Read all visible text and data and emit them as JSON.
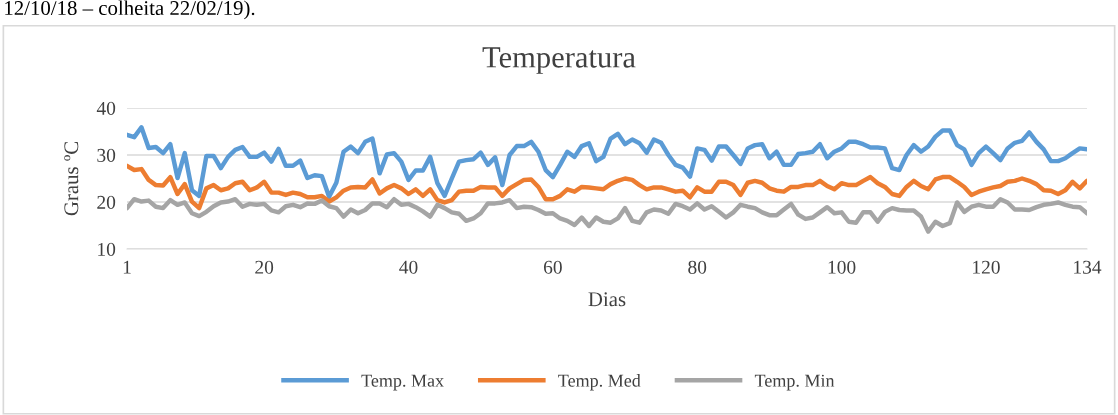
{
  "chart_data": {
    "type": "line",
    "title": "Temperatura",
    "xlabel": "Dias",
    "ylabel": "Graus ºC",
    "annotations": [
      "12/10/18 – colheita 22/02/19)."
    ],
    "x": [
      1,
      2,
      3,
      4,
      5,
      6,
      7,
      8,
      9,
      10,
      11,
      12,
      13,
      14,
      15,
      16,
      17,
      18,
      19,
      20,
      21,
      22,
      23,
      24,
      25,
      26,
      27,
      28,
      29,
      30,
      31,
      32,
      33,
      34,
      35,
      36,
      37,
      38,
      39,
      40,
      41,
      42,
      43,
      44,
      45,
      46,
      47,
      48,
      49,
      50,
      51,
      52,
      53,
      54,
      55,
      56,
      57,
      58,
      59,
      60,
      61,
      62,
      63,
      64,
      65,
      66,
      67,
      68,
      69,
      70,
      71,
      72,
      73,
      74,
      75,
      76,
      77,
      78,
      79,
      80,
      81,
      82,
      83,
      84,
      85,
      86,
      87,
      88,
      89,
      90,
      91,
      92,
      93,
      94,
      95,
      96,
      97,
      98,
      99,
      100,
      101,
      102,
      103,
      104,
      105,
      106,
      107,
      108,
      109,
      110,
      111,
      112,
      113,
      114,
      115,
      116,
      117,
      118,
      119,
      120,
      121,
      122,
      123,
      124,
      125,
      126,
      127,
      128,
      129,
      130,
      131,
      132,
      133,
      134
    ],
    "series": [
      {
        "name": "Temp. Max",
        "color": "#5b9bd5",
        "values": [
          34.3,
          33.8,
          35.9,
          31.5,
          31.7,
          30.4,
          32.3,
          25.1,
          30.4,
          22.5,
          21.3,
          29.8,
          29.8,
          27.2,
          29.6,
          31.1,
          31.7,
          29.6,
          29.6,
          30.5,
          28.6,
          31.3,
          27.7,
          27.7,
          28.8,
          25.1,
          25.7,
          25.5,
          21.1,
          24.1,
          30.7,
          31.8,
          30.4,
          32.8,
          33.5,
          26.1,
          30.1,
          30.4,
          28.6,
          24.7,
          26.7,
          26.7,
          29.6,
          24.0,
          21.3,
          25.0,
          28.6,
          28.9,
          29.1,
          30.5,
          27.9,
          29.5,
          23.6,
          30.0,
          31.9,
          31.9,
          32.8,
          30.7,
          26.8,
          25.3,
          27.9,
          30.7,
          29.6,
          31.9,
          32.5,
          28.7,
          29.6,
          33.5,
          34.5,
          32.3,
          33.3,
          32.5,
          30.5,
          33.3,
          32.6,
          30.0,
          27.9,
          27.3,
          25.4,
          31.4,
          31.1,
          28.8,
          31.8,
          31.8,
          30.0,
          28.1,
          31.4,
          32.1,
          32.3,
          29.3,
          30.7,
          27.9,
          27.9,
          30.2,
          30.4,
          30.7,
          32.3,
          29.3,
          30.7,
          31.4,
          32.8,
          32.8,
          32.3,
          31.6,
          31.6,
          31.4,
          27.2,
          26.8,
          30.0,
          32.1,
          30.7,
          31.8,
          33.9,
          35.2,
          35.2,
          32.1,
          31.2,
          27.9,
          30.4,
          31.8,
          30.4,
          28.9,
          31.4,
          32.6,
          33.0,
          34.8,
          32.8,
          31.2,
          28.7,
          28.7,
          29.3,
          30.4,
          31.4,
          31.2
        ]
      },
      {
        "name": "Temp. Med",
        "color": "#ed7d31",
        "values": [
          27.7,
          26.8,
          27.0,
          24.7,
          23.6,
          23.5,
          25.3,
          21.7,
          23.8,
          20.1,
          18.7,
          22.9,
          23.6,
          22.5,
          22.9,
          24.0,
          24.3,
          22.5,
          23.1,
          24.3,
          22.0,
          22.0,
          21.5,
          22.0,
          21.7,
          21.0,
          21.0,
          21.3,
          20.1,
          21.0,
          22.4,
          23.1,
          23.2,
          23.1,
          24.8,
          21.8,
          22.9,
          23.6,
          22.9,
          21.7,
          22.7,
          21.3,
          22.7,
          20.4,
          19.9,
          20.4,
          22.2,
          22.4,
          22.4,
          23.2,
          23.1,
          23.1,
          21.3,
          22.9,
          23.8,
          24.7,
          24.8,
          23.2,
          20.6,
          20.6,
          21.3,
          22.7,
          22.2,
          23.2,
          23.1,
          22.9,
          22.7,
          23.8,
          24.5,
          25.0,
          24.7,
          23.6,
          22.7,
          23.1,
          23.1,
          22.7,
          22.2,
          22.4,
          21.0,
          23.1,
          22.2,
          22.2,
          24.3,
          24.3,
          23.6,
          21.5,
          24.1,
          24.5,
          24.1,
          22.9,
          22.4,
          22.2,
          23.2,
          23.2,
          23.6,
          23.6,
          24.5,
          23.4,
          22.7,
          24.0,
          23.6,
          23.6,
          24.5,
          25.3,
          24.0,
          23.2,
          21.7,
          21.3,
          23.2,
          24.5,
          23.4,
          22.7,
          24.8,
          25.3,
          25.3,
          24.3,
          23.2,
          21.5,
          22.2,
          22.7,
          23.1,
          23.4,
          24.3,
          24.5,
          25.0,
          24.5,
          23.8,
          22.5,
          22.4,
          21.7,
          22.5,
          24.3,
          22.9,
          24.5
        ]
      },
      {
        "name": "Temp. Min",
        "color": "#a5a5a5",
        "values": [
          18.7,
          20.6,
          20.1,
          20.3,
          19.0,
          18.7,
          20.4,
          19.4,
          19.9,
          17.6,
          17.0,
          17.9,
          19.1,
          19.9,
          20.1,
          20.6,
          19.0,
          19.6,
          19.4,
          19.6,
          18.2,
          17.8,
          19.1,
          19.4,
          18.9,
          19.7,
          19.6,
          20.3,
          19.1,
          18.7,
          16.9,
          18.4,
          17.6,
          18.3,
          19.7,
          19.7,
          18.9,
          20.6,
          19.4,
          19.6,
          18.9,
          18.0,
          16.9,
          19.4,
          18.7,
          17.8,
          17.5,
          16.0,
          16.5,
          17.6,
          19.7,
          19.7,
          19.9,
          20.4,
          18.7,
          19.0,
          18.9,
          18.3,
          17.5,
          17.6,
          16.5,
          16.0,
          15.1,
          16.7,
          14.9,
          16.7,
          15.8,
          15.6,
          16.5,
          18.7,
          16.0,
          15.6,
          17.8,
          18.4,
          18.2,
          17.5,
          19.6,
          19.1,
          18.4,
          19.7,
          18.4,
          19.1,
          17.9,
          16.7,
          17.8,
          19.4,
          19.0,
          18.7,
          17.8,
          17.2,
          17.2,
          18.4,
          19.6,
          17.3,
          16.4,
          16.7,
          17.8,
          18.9,
          17.6,
          17.8,
          15.8,
          15.6,
          17.8,
          17.8,
          15.8,
          17.9,
          18.7,
          18.3,
          18.2,
          18.2,
          16.9,
          13.7,
          15.8,
          14.9,
          15.5,
          19.9,
          17.9,
          19.0,
          19.4,
          19.0,
          19.0,
          20.6,
          19.9,
          18.4,
          18.4,
          18.3,
          18.9,
          19.4,
          19.6,
          19.9,
          19.4,
          19.0,
          18.9,
          17.6
        ]
      }
    ],
    "xlim": [
      1,
      134
    ],
    "xticks": [
      1,
      20,
      40,
      60,
      80,
      100,
      120,
      134
    ],
    "ylim": [
      10,
      40
    ],
    "yticks": [
      10,
      20,
      30,
      40
    ],
    "grid": "y",
    "legend": "bottom",
    "marker": "none",
    "line_style": "solid"
  }
}
